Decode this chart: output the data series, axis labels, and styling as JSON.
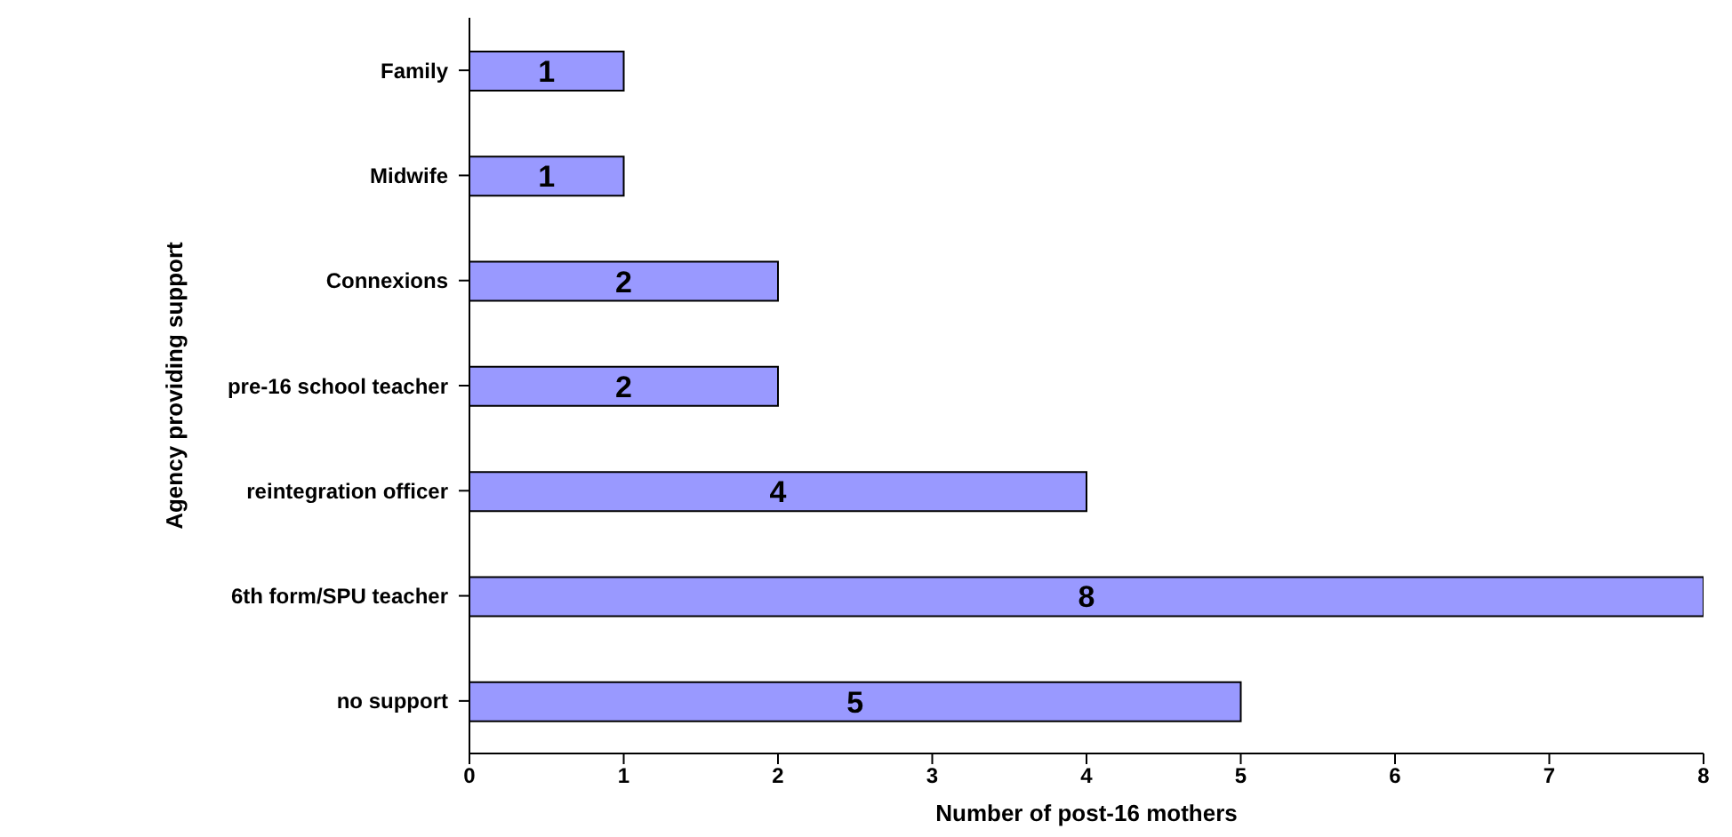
{
  "chart_data": {
    "type": "bar",
    "orientation": "horizontal",
    "categories": [
      "Family",
      "Midwife",
      "Connexions",
      "pre-16 school teacher",
      "reintegration officer",
      "6th form/SPU teacher",
      "no support"
    ],
    "values": [
      1,
      1,
      2,
      2,
      4,
      8,
      5
    ],
    "color": "#9999ff",
    "xlim": [
      0,
      8
    ],
    "xticks": [
      0,
      1,
      2,
      3,
      4,
      5,
      6,
      7,
      8
    ],
    "xlabel": "Number of post-16 mothers",
    "ylabel": "Agency providing support",
    "data_labels": true,
    "grid": false,
    "legend": false
  }
}
